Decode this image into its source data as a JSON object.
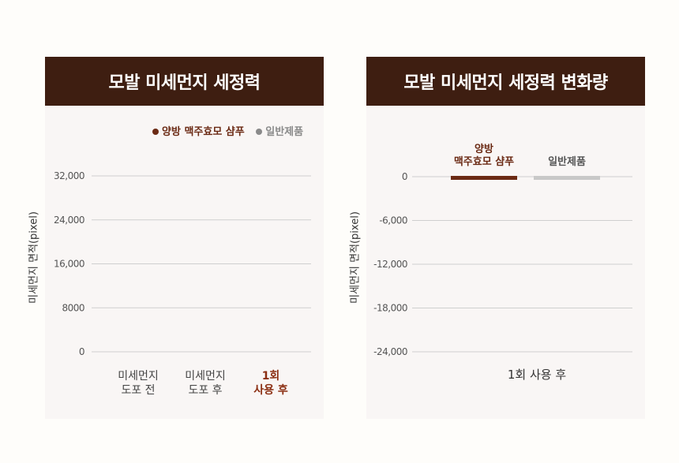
{
  "colors": {
    "header_bg": "#3e1e11",
    "yangbang": "#6b2a14",
    "general": "#8a8a8a",
    "general_bar": "#c8c8c8",
    "highlight_text": "#8b2e12",
    "grid": "#cfcfcf"
  },
  "chart_data": [
    {
      "type": "bar",
      "title": "모발 미세먼지 세정력",
      "ylabel": "미세먼지 면적(pixel)",
      "categories": [
        {
          "line1": "미세먼지",
          "line2": "도포 전"
        },
        {
          "line1": "미세먼지",
          "line2": "도포 후"
        },
        {
          "line1": "1회",
          "line2": "사용 후"
        }
      ],
      "legend": [
        {
          "name": "양방 맥주효모 샴푸",
          "color": "#6b2a14"
        },
        {
          "name": "일반제품",
          "color": "#8a8a8a"
        }
      ],
      "legend_position": "top-right",
      "series": [
        {
          "name": "양방 맥주효모 샴푸",
          "values": [
            null,
            null,
            null
          ]
        },
        {
          "name": "일반제품",
          "values": [
            null,
            null,
            null
          ]
        }
      ],
      "ylim": [
        0,
        32000
      ],
      "yticks": [
        0,
        8000,
        16000,
        24000,
        32000
      ],
      "ytick_labels": [
        "0",
        "8000",
        "16,000",
        "24,000",
        "32,000"
      ],
      "grid": true
    },
    {
      "type": "bar",
      "title": "모발 미세먼지 세정력 변화량",
      "ylabel": "미세먼지 면적(pixel)",
      "categories": [
        "1회 사용 후"
      ],
      "series": [
        {
          "name": "양방\n맥주효모 샴푸",
          "values": [
            0
          ],
          "color": "#6b2a14"
        },
        {
          "name": "일반제품",
          "values": [
            0
          ],
          "color": "#c8c8c8"
        }
      ],
      "ylim": [
        -24000,
        0
      ],
      "yticks": [
        0,
        -6000,
        -12000,
        -18000,
        -24000
      ],
      "ytick_labels": [
        "0",
        "-6,000",
        "-12,000",
        "-18,000",
        "-24,000"
      ],
      "grid": true
    }
  ]
}
